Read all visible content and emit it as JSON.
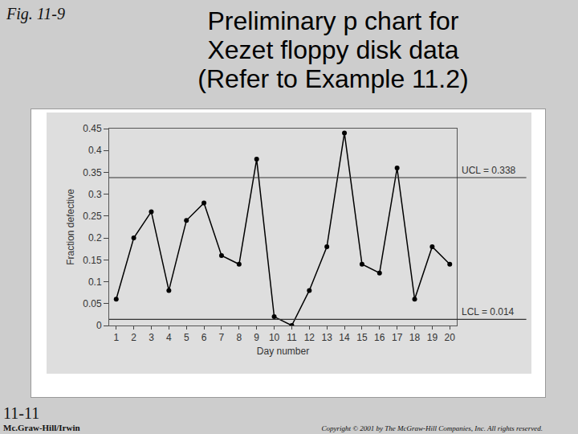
{
  "slide": {
    "figure_label": "Fig. 11-9",
    "title": [
      "Preliminary p chart for",
      "Xezet floppy disk data",
      "(Refer to Example 11.2)"
    ],
    "slide_number": "11-11",
    "publisher": "Mc.Graw-Hill/Irwin",
    "copyright": "Copyright © 2001 by The McGraw-Hill Companies, Inc. All rights reserved."
  },
  "chart_data": {
    "type": "line",
    "x_label": "Day number",
    "y_label": "Fraction defective",
    "x": [
      1,
      2,
      3,
      4,
      5,
      6,
      7,
      8,
      9,
      10,
      11,
      12,
      13,
      14,
      15,
      16,
      17,
      18,
      19,
      20
    ],
    "values": [
      0.06,
      0.2,
      0.26,
      0.08,
      0.24,
      0.28,
      0.16,
      0.14,
      0.38,
      0.02,
      0.0,
      0.08,
      0.18,
      0.44,
      0.14,
      0.12,
      0.36,
      0.06,
      0.18,
      0.14
    ],
    "color": "#000000",
    "marker": "circle",
    "line_style": "solid",
    "xlim": [
      0.6,
      20.4
    ],
    "xticks": [
      1,
      2,
      3,
      4,
      5,
      6,
      7,
      8,
      9,
      10,
      11,
      12,
      13,
      14,
      15,
      16,
      17,
      18,
      19,
      20
    ],
    "ylim": [
      0,
      0.45
    ],
    "yticks": [
      0,
      0.05,
      0.1,
      0.15,
      0.2,
      0.25,
      0.3,
      0.35,
      0.4,
      0.45
    ],
    "grid": false,
    "reference_lines": [
      {
        "value": 0.338,
        "label": "UCL = 0.338"
      },
      {
        "value": 0.014,
        "label": "LCL = 0.014"
      }
    ]
  }
}
